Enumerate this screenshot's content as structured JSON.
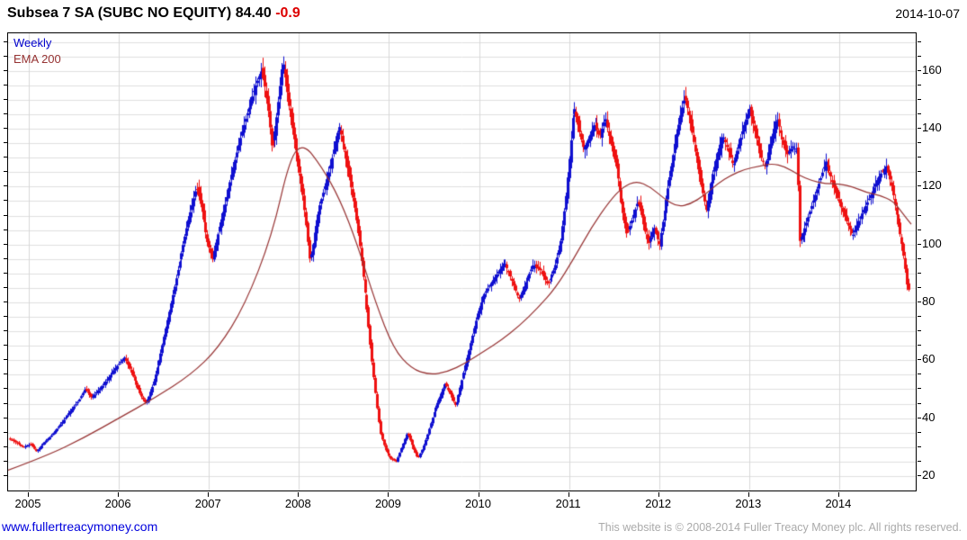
{
  "header": {
    "title_main": "Subsea 7 SA (SUBC NO EQUITY)",
    "title_price": "84.40",
    "title_change": "-0.9",
    "date": "2014-10-07"
  },
  "legend": {
    "series1": "Weekly",
    "series2": "EMA 200"
  },
  "footer": {
    "website": "www.fullertreacymoney.com",
    "copyright": "This website is © 2008-2014 Fuller Treacy Money plc. All rights reserved."
  },
  "colors": {
    "up_bar": "#0f0fd0",
    "down_bar": "#ee1111",
    "ema_line": "#963232",
    "gridline": "#dfdfdf",
    "year_gridline": "#d8d8d8",
    "legend_weekly": "#0000cc",
    "legend_ema": "#963232",
    "change_red": "#dd0000",
    "link_blue": "#0000dd",
    "copyright_gray": "#aaaaaa"
  },
  "chart_data": {
    "type": "candlestick",
    "title": "Subsea 7 SA (SUBC NO EQUITY)",
    "subtitle": "Weekly bars with 200-day EMA",
    "last_price": 84.4,
    "change": -0.9,
    "legend": [
      "Weekly",
      "EMA 200"
    ],
    "x_range": [
      2004.77,
      2014.85
    ],
    "y_range": [
      15,
      173
    ],
    "y_tick_labels": [
      160,
      140,
      120,
      100,
      80,
      60,
      40,
      20
    ],
    "y_grid_step": 5,
    "x_tick_labels": [
      2005,
      2006,
      2007,
      2008,
      2009,
      2010,
      2011,
      2012,
      2013,
      2014
    ],
    "grid": true,
    "legend_position": "top-left",
    "bars_per_year": 52,
    "price_keyframes": [
      [
        2004.77,
        33
      ],
      [
        2004.86,
        31.5
      ],
      [
        2004.94,
        30
      ],
      [
        2005.02,
        31
      ],
      [
        2005.08,
        28.5
      ],
      [
        2005.15,
        31
      ],
      [
        2005.25,
        34
      ],
      [
        2005.35,
        38
      ],
      [
        2005.45,
        42
      ],
      [
        2005.55,
        46
      ],
      [
        2005.62,
        50
      ],
      [
        2005.7,
        47
      ],
      [
        2005.78,
        50
      ],
      [
        2005.88,
        54
      ],
      [
        2005.98,
        58
      ],
      [
        2006.06,
        61
      ],
      [
        2006.16,
        54
      ],
      [
        2006.24,
        48
      ],
      [
        2006.3,
        45
      ],
      [
        2006.38,
        52
      ],
      [
        2006.46,
        62
      ],
      [
        2006.54,
        74
      ],
      [
        2006.62,
        86
      ],
      [
        2006.7,
        98
      ],
      [
        2006.78,
        110
      ],
      [
        2006.86,
        120
      ],
      [
        2006.92,
        112
      ],
      [
        2006.98,
        101
      ],
      [
        2007.04,
        95
      ],
      [
        2007.1,
        104
      ],
      [
        2007.16,
        112
      ],
      [
        2007.22,
        120
      ],
      [
        2007.28,
        128
      ],
      [
        2007.34,
        136
      ],
      [
        2007.4,
        143
      ],
      [
        2007.46,
        149
      ],
      [
        2007.52,
        155
      ],
      [
        2007.58,
        160
      ],
      [
        2007.62,
        154
      ],
      [
        2007.66,
        145
      ],
      [
        2007.7,
        132
      ],
      [
        2007.74,
        141
      ],
      [
        2007.78,
        152
      ],
      [
        2007.82,
        164
      ],
      [
        2007.85,
        157
      ],
      [
        2007.88,
        149
      ],
      [
        2007.92,
        141
      ],
      [
        2007.96,
        133
      ],
      [
        2008.0,
        125
      ],
      [
        2008.04,
        117
      ],
      [
        2008.08,
        106
      ],
      [
        2008.12,
        94
      ],
      [
        2008.16,
        101
      ],
      [
        2008.2,
        110
      ],
      [
        2008.28,
        119
      ],
      [
        2008.36,
        129
      ],
      [
        2008.44,
        141
      ],
      [
        2008.5,
        133
      ],
      [
        2008.56,
        123
      ],
      [
        2008.62,
        112
      ],
      [
        2008.68,
        98
      ],
      [
        2008.74,
        81
      ],
      [
        2008.8,
        62
      ],
      [
        2008.86,
        45
      ],
      [
        2008.9,
        35
      ],
      [
        2008.96,
        29
      ],
      [
        2009.02,
        26
      ],
      [
        2009.08,
        25
      ],
      [
        2009.14,
        30
      ],
      [
        2009.2,
        35
      ],
      [
        2009.26,
        30
      ],
      [
        2009.32,
        26
      ],
      [
        2009.38,
        30
      ],
      [
        2009.44,
        36
      ],
      [
        2009.5,
        42
      ],
      [
        2009.56,
        47
      ],
      [
        2009.62,
        52
      ],
      [
        2009.68,
        48
      ],
      [
        2009.74,
        44
      ],
      [
        2009.8,
        52
      ],
      [
        2009.86,
        60
      ],
      [
        2009.92,
        68
      ],
      [
        2009.98,
        76
      ],
      [
        2010.04,
        82
      ],
      [
        2010.12,
        86
      ],
      [
        2010.2,
        90
      ],
      [
        2010.28,
        94
      ],
      [
        2010.36,
        88
      ],
      [
        2010.44,
        81
      ],
      [
        2010.52,
        87
      ],
      [
        2010.6,
        93
      ],
      [
        2010.68,
        91
      ],
      [
        2010.76,
        86
      ],
      [
        2010.84,
        92
      ],
      [
        2010.9,
        100
      ],
      [
        2010.96,
        116
      ],
      [
        2011.02,
        136
      ],
      [
        2011.05,
        148
      ],
      [
        2011.1,
        141
      ],
      [
        2011.16,
        133
      ],
      [
        2011.22,
        137
      ],
      [
        2011.28,
        142
      ],
      [
        2011.34,
        137
      ],
      [
        2011.4,
        144
      ],
      [
        2011.46,
        135
      ],
      [
        2011.52,
        127
      ],
      [
        2011.58,
        114
      ],
      [
        2011.64,
        103
      ],
      [
        2011.7,
        109
      ],
      [
        2011.76,
        115
      ],
      [
        2011.82,
        108
      ],
      [
        2011.88,
        100
      ],
      [
        2011.94,
        106
      ],
      [
        2012.0,
        100
      ],
      [
        2012.06,
        112
      ],
      [
        2012.12,
        124
      ],
      [
        2012.18,
        136
      ],
      [
        2012.24,
        146
      ],
      [
        2012.28,
        151
      ],
      [
        2012.34,
        143
      ],
      [
        2012.4,
        133
      ],
      [
        2012.46,
        121
      ],
      [
        2012.52,
        112
      ],
      [
        2012.58,
        122
      ],
      [
        2012.64,
        130
      ],
      [
        2012.7,
        138
      ],
      [
        2012.76,
        133
      ],
      [
        2012.82,
        127
      ],
      [
        2012.88,
        134
      ],
      [
        2012.94,
        141
      ],
      [
        2013.0,
        147
      ],
      [
        2013.06,
        139
      ],
      [
        2013.12,
        131
      ],
      [
        2013.18,
        127
      ],
      [
        2013.24,
        136
      ],
      [
        2013.3,
        144
      ],
      [
        2013.36,
        137
      ],
      [
        2013.42,
        131
      ],
      [
        2013.48,
        134
      ],
      [
        2013.53,
        132
      ],
      [
        2013.555,
        101
      ],
      [
        2013.61,
        105
      ],
      [
        2013.67,
        111
      ],
      [
        2013.73,
        117
      ],
      [
        2013.79,
        123
      ],
      [
        2013.85,
        129
      ],
      [
        2013.91,
        123
      ],
      [
        2013.97,
        117
      ],
      [
        2014.03,
        112
      ],
      [
        2014.09,
        107
      ],
      [
        2014.15,
        103
      ],
      [
        2014.21,
        108
      ],
      [
        2014.27,
        112
      ],
      [
        2014.33,
        116
      ],
      [
        2014.39,
        120
      ],
      [
        2014.45,
        124
      ],
      [
        2014.52,
        127
      ],
      [
        2014.58,
        120
      ],
      [
        2014.62,
        113
      ],
      [
        2014.66,
        106
      ],
      [
        2014.7,
        99
      ],
      [
        2014.73,
        92
      ],
      [
        2014.755,
        85
      ],
      [
        2014.78,
        84.4
      ]
    ],
    "ema_keyframes": [
      [
        2004.77,
        22
      ],
      [
        2005.2,
        27
      ],
      [
        2005.6,
        33
      ],
      [
        2006.0,
        40
      ],
      [
        2006.4,
        47
      ],
      [
        2006.8,
        55
      ],
      [
        2007.1,
        64
      ],
      [
        2007.4,
        79
      ],
      [
        2007.7,
        103
      ],
      [
        2007.9,
        130
      ],
      [
        2008.05,
        135
      ],
      [
        2008.25,
        127
      ],
      [
        2008.45,
        116
      ],
      [
        2008.65,
        100
      ],
      [
        2008.85,
        80
      ],
      [
        2009.05,
        64
      ],
      [
        2009.25,
        57
      ],
      [
        2009.45,
        55
      ],
      [
        2009.65,
        56
      ],
      [
        2009.85,
        59
      ],
      [
        2010.05,
        63
      ],
      [
        2010.25,
        67
      ],
      [
        2010.45,
        72
      ],
      [
        2010.65,
        78
      ],
      [
        2010.85,
        85
      ],
      [
        2011.05,
        95
      ],
      [
        2011.25,
        106
      ],
      [
        2011.45,
        115
      ],
      [
        2011.6,
        120
      ],
      [
        2011.75,
        122
      ],
      [
        2011.9,
        120
      ],
      [
        2012.05,
        116
      ],
      [
        2012.2,
        113
      ],
      [
        2012.35,
        114
      ],
      [
        2012.5,
        117
      ],
      [
        2012.65,
        121
      ],
      [
        2012.8,
        124
      ],
      [
        2012.95,
        126
      ],
      [
        2013.1,
        127
      ],
      [
        2013.25,
        128
      ],
      [
        2013.4,
        127
      ],
      [
        2013.55,
        124
      ],
      [
        2013.7,
        122
      ],
      [
        2013.85,
        121
      ],
      [
        2014.0,
        121
      ],
      [
        2014.15,
        120
      ],
      [
        2014.3,
        118
      ],
      [
        2014.45,
        117
      ],
      [
        2014.6,
        115
      ],
      [
        2014.7,
        111
      ],
      [
        2014.8,
        107
      ]
    ]
  }
}
